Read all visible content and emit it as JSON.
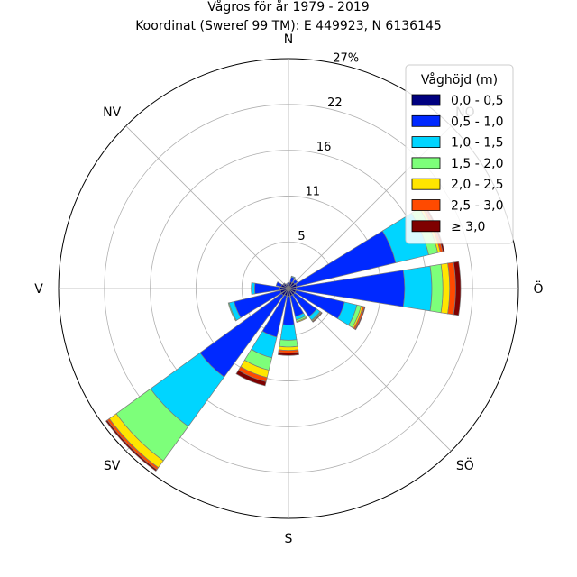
{
  "title": "Vågros för år 1979 - 2019",
  "subtitle": "Koordinat (Sweref 99 TM): E 449923, N 6136145",
  "chart_data": {
    "type": "windrose",
    "title": "Vågros för år 1979 - 2019",
    "subtitle": "Koordinat (Sweref 99 TM): E 449923, N 6136145",
    "directions": [
      "N",
      "NO",
      "Ö",
      "SÖ",
      "S",
      "SV",
      "V",
      "NV"
    ],
    "radial_ticks": [
      "5",
      "11",
      "16",
      "22",
      "27%"
    ],
    "radial_tick_values": [
      5.5,
      10.9,
      16.3,
      21.7,
      27.1
    ],
    "rmax": 27.1,
    "legend_title": "Våghöjd (m)",
    "legend_position": "top-right",
    "bins": [
      "0,0 - 0,5",
      "0,5 - 1,0",
      "1,0 - 1,5",
      "1,5 - 2,0",
      "2,0 - 2,5",
      "2,5 - 3,0",
      "≥ 3,0"
    ],
    "colors": [
      "#00007f",
      "#0029ff",
      "#00d5ff",
      "#7dff7a",
      "#ffe500",
      "#ff4a00",
      "#7f0000"
    ],
    "sectors": [
      {
        "angle": 0,
        "stack": [
          0.5,
          0.2,
          0.0,
          0.0,
          0.0,
          0.0,
          0.0
        ]
      },
      {
        "angle": 22.5,
        "stack": [
          0.8,
          0.6,
          0.1,
          0.0,
          0.0,
          0.0,
          0.0
        ]
      },
      {
        "angle": 45,
        "stack": [
          0.9,
          0.4,
          0.0,
          0.0,
          0.0,
          0.0,
          0.0
        ]
      },
      {
        "angle": 67.5,
        "stack": [
          1.0,
          12.0,
          4.0,
          1.1,
          0.3,
          0.3,
          0.2
        ]
      },
      {
        "angle": 90,
        "stack": [
          0.9,
          12.8,
          3.2,
          1.3,
          0.8,
          0.7,
          0.6
        ]
      },
      {
        "angle": 112.5,
        "stack": [
          0.9,
          5.9,
          1.5,
          0.5,
          0.2,
          0.2,
          0.1
        ]
      },
      {
        "angle": 135,
        "stack": [
          0.9,
          3.2,
          0.5,
          0.1,
          0.1,
          0.0,
          0.1
        ]
      },
      {
        "angle": 157.5,
        "stack": [
          0.9,
          2.5,
          0.4,
          0.2,
          0.1,
          0.0,
          0.0
        ]
      },
      {
        "angle": 180,
        "stack": [
          0.9,
          3.4,
          1.8,
          0.8,
          0.4,
          0.3,
          0.3
        ]
      },
      {
        "angle": 202.5,
        "stack": [
          0.9,
          5.0,
          2.5,
          1.5,
          0.9,
          0.5,
          0.5
        ]
      },
      {
        "angle": 225,
        "stack": [
          1.0,
          11.9,
          7.2,
          5.0,
          1.0,
          0.3,
          0.2
        ]
      },
      {
        "angle": 247.5,
        "stack": [
          1.0,
          5.6,
          0.6,
          0.1,
          0.0,
          0.0,
          0.0
        ]
      },
      {
        "angle": 270,
        "stack": [
          1.0,
          3.0,
          0.4,
          0.0,
          0.0,
          0.0,
          0.0
        ]
      },
      {
        "angle": 292.5,
        "stack": [
          0.9,
          0.6,
          0.0,
          0.0,
          0.0,
          0.0,
          0.0
        ]
      },
      {
        "angle": 315,
        "stack": [
          0.7,
          0.1,
          0.0,
          0.0,
          0.0,
          0.0,
          0.0
        ]
      },
      {
        "angle": 337.5,
        "stack": [
          0.5,
          0.1,
          0.0,
          0.0,
          0.0,
          0.0,
          0.0
        ]
      }
    ]
  }
}
